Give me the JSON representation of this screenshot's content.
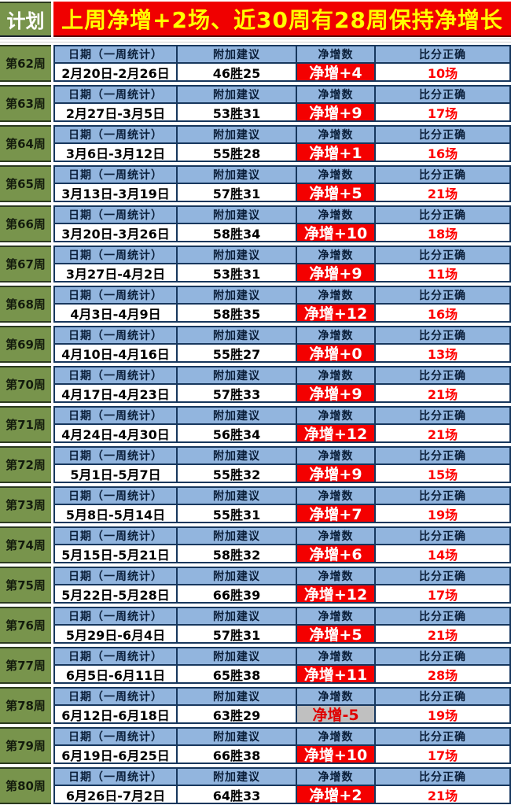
{
  "header": {
    "plan_label": "计划",
    "banner_text": "上周净增+2场、近30周有28周保持净增长"
  },
  "table": {
    "columns": [
      "日期（一周统计）",
      "附加建议",
      "净增数",
      "比分正确"
    ]
  },
  "weeks": [
    {
      "week": "第62周",
      "date_range": "2月20日-2月26日",
      "suggestion": "46胜25",
      "net": "净增+4",
      "negative": false,
      "score": "10场"
    },
    {
      "week": "第63周",
      "date_range": "2月27日-3月5日",
      "suggestion": "53胜31",
      "net": "净增+9",
      "negative": false,
      "score": "17场"
    },
    {
      "week": "第64周",
      "date_range": "3月6日-3月12日",
      "suggestion": "55胜28",
      "net": "净增+1",
      "negative": false,
      "score": "16场"
    },
    {
      "week": "第65周",
      "date_range": "3月13日-3月19日",
      "suggestion": "57胜31",
      "net": "净增+5",
      "negative": false,
      "score": "21场"
    },
    {
      "week": "第66周",
      "date_range": "3月20日-3月26日",
      "suggestion": "58胜34",
      "net": "净增+10",
      "negative": false,
      "score": "18场"
    },
    {
      "week": "第67周",
      "date_range": "3月27日-4月2日",
      "suggestion": "53胜31",
      "net": "净增+9",
      "negative": false,
      "score": "11场"
    },
    {
      "week": "第68周",
      "date_range": "4月3日-4月9日",
      "suggestion": "58胜35",
      "net": "净增+12",
      "negative": false,
      "score": "16场"
    },
    {
      "week": "第69周",
      "date_range": "4月10日-4月16日",
      "suggestion": "55胜27",
      "net": "净增+0",
      "negative": false,
      "score": "13场"
    },
    {
      "week": "第70周",
      "date_range": "4月17日-4月23日",
      "suggestion": "57胜33",
      "net": "净增+9",
      "negative": false,
      "score": "21场"
    },
    {
      "week": "第71周",
      "date_range": "4月24日-4月30日",
      "suggestion": "56胜34",
      "net": "净增+12",
      "negative": false,
      "score": "21场"
    },
    {
      "week": "第72周",
      "date_range": "5月1日-5月7日",
      "suggestion": "55胜32",
      "net": "净增+9",
      "negative": false,
      "score": "15场"
    },
    {
      "week": "第73周",
      "date_range": "5月8日-5月14日",
      "suggestion": "55胜31",
      "net": "净增+7",
      "negative": false,
      "score": "19场"
    },
    {
      "week": "第74周",
      "date_range": "5月15日-5月21日",
      "suggestion": "58胜32",
      "net": "净增+6",
      "negative": false,
      "score": "14场"
    },
    {
      "week": "第75周",
      "date_range": "5月22日-5月28日",
      "suggestion": "66胜39",
      "net": "净增+12",
      "negative": false,
      "score": "17场"
    },
    {
      "week": "第76周",
      "date_range": "5月29日-6月4日",
      "suggestion": "57胜31",
      "net": "净增+5",
      "negative": false,
      "score": "21场"
    },
    {
      "week": "第77周",
      "date_range": "6月5日-6月11日",
      "suggestion": "65胜38",
      "net": "净增+11",
      "negative": false,
      "score": "28场"
    },
    {
      "week": "第78周",
      "date_range": "6月12日-6月18日",
      "suggestion": "63胜29",
      "net": "净增-5",
      "negative": true,
      "score": "19场"
    },
    {
      "week": "第79周",
      "date_range": "6月19日-6月25日",
      "suggestion": "66胜38",
      "net": "净增+10",
      "negative": false,
      "score": "17场"
    },
    {
      "week": "第80周",
      "date_range": "6月26日-7月2日",
      "suggestion": "64胜33",
      "net": "净增+2",
      "negative": false,
      "score": "21场"
    }
  ],
  "colors": {
    "banner_bg": "#F00000",
    "banner_text": "#FFFF00",
    "week_cell_bg": "#78944C",
    "header_row_bg": "#92B5DE",
    "table_border": "#17375D",
    "net_positive_bg": "#F40000",
    "net_positive_text": "#FFFFFF",
    "net_negative_bg": "#C0C0C0",
    "net_negative_text": "#E00000",
    "score_text": "#FE0000"
  }
}
